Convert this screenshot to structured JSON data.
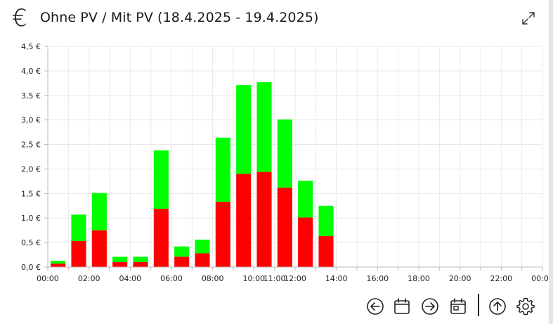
{
  "header": {
    "icon": "euro-icon",
    "title": "Ohne PV / Mit PV (18.4.2025 - 19.4.2025)",
    "expand_icon": "expand-icon"
  },
  "colors": {
    "ohne_pv": "#ff0000",
    "mit_pv": "#00ff00",
    "grid": "#e8e8e8",
    "axis": "#bbbbbb"
  },
  "chart_data": {
    "type": "bar",
    "stacked": true,
    "x_ticks": [
      "00:00",
      "02:00",
      "04:00",
      "06:00",
      "08:00",
      "10:00",
      "11:00",
      "12:00",
      "14:00",
      "16:00",
      "18:00",
      "20:00",
      "22:00",
      "00:00"
    ],
    "y_ticks": [
      "0,0 €",
      "0,5 €",
      "1,0 €",
      "1,5 €",
      "2,0 €",
      "2,5 €",
      "3,0 €",
      "3,5 €",
      "4,0 €",
      "4,5 €"
    ],
    "ylim": [
      0,
      4.5
    ],
    "grid": true,
    "bars": [
      {
        "hour": 0.5,
        "red": 0.07,
        "total": 0.13
      },
      {
        "hour": 1.5,
        "red": 0.53,
        "total": 1.07
      },
      {
        "hour": 2.5,
        "red": 0.75,
        "total": 1.51
      },
      {
        "hour": 3.5,
        "red": 0.1,
        "total": 0.21
      },
      {
        "hour": 4.5,
        "red": 0.1,
        "total": 0.21
      },
      {
        "hour": 5.5,
        "red": 1.19,
        "total": 2.38
      },
      {
        "hour": 6.5,
        "red": 0.21,
        "total": 0.42
      },
      {
        "hour": 7.5,
        "red": 0.28,
        "total": 0.56
      },
      {
        "hour": 8.5,
        "red": 1.33,
        "total": 2.64
      },
      {
        "hour": 9.5,
        "red": 1.9,
        "total": 3.71
      },
      {
        "hour": 10.5,
        "red": 1.94,
        "total": 3.77
      },
      {
        "hour": 11.5,
        "red": 1.62,
        "total": 3.01
      },
      {
        "hour": 12.5,
        "red": 1.01,
        "total": 1.76
      },
      {
        "hour": 13.5,
        "red": 0.63,
        "total": 1.25
      }
    ]
  },
  "toolbar": {
    "items": [
      {
        "name": "prev-period-button",
        "icon": "arrow-left-circle-icon"
      },
      {
        "name": "calendar-button",
        "icon": "calendar-icon"
      },
      {
        "name": "next-period-button",
        "icon": "arrow-right-circle-icon"
      },
      {
        "name": "today-button",
        "icon": "calendar-day-icon"
      },
      {
        "name": "scroll-up-button",
        "icon": "arrow-up-circle-icon"
      },
      {
        "name": "settings-button",
        "icon": "gear-icon"
      }
    ]
  }
}
